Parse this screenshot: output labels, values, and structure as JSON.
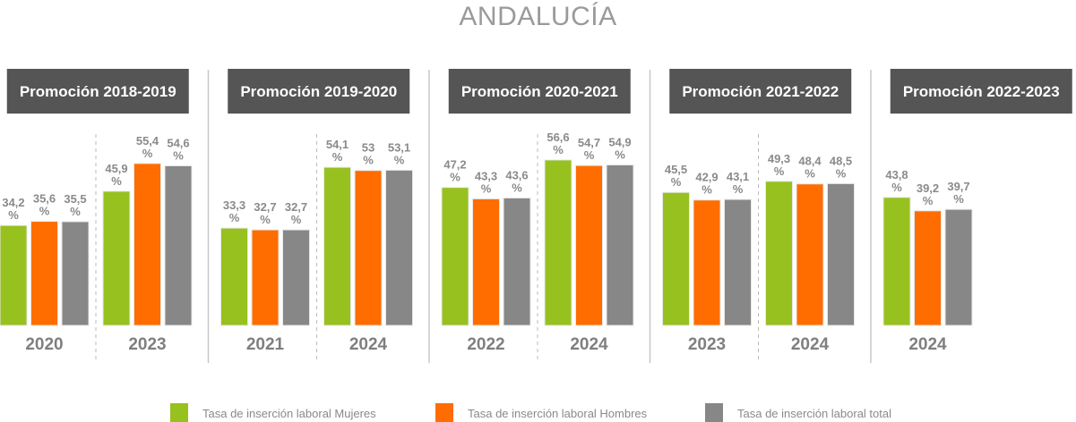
{
  "chart_data": {
    "type": "bar",
    "title": "ANDALUCÍA",
    "xlabel": "",
    "ylabel": "",
    "ylim": [
      0,
      60
    ],
    "grid": false,
    "legend_position": "bottom",
    "unit": "%",
    "colors": {
      "mujeres": "#97c11f",
      "hombres": "#ff6c00",
      "total": "#878787",
      "header": "#555555"
    },
    "legend": [
      {
        "key": "mujeres",
        "label": "Tasa de inserción laboral Mujeres"
      },
      {
        "key": "hombres",
        "label": "Tasa de inserción laboral Hombres"
      },
      {
        "key": "total",
        "label": "Tasa de inserción laboral total"
      }
    ],
    "panels": [
      {
        "title": "Promoción 2018-2019",
        "groups": [
          {
            "year": "2020",
            "mujeres": 34.2,
            "hombres": 35.6,
            "total": 35.5,
            "labels": [
              "34,2",
              "35,6",
              "35,5"
            ]
          },
          {
            "year": "2023",
            "mujeres": 45.9,
            "hombres": 55.4,
            "total": 54.6,
            "labels": [
              "45,9",
              "55,4",
              "54,6"
            ]
          }
        ]
      },
      {
        "title": "Promoción 2019-2020",
        "groups": [
          {
            "year": "2021",
            "mujeres": 33.3,
            "hombres": 32.7,
            "total": 32.7,
            "labels": [
              "33,3",
              "32,7",
              "32,7"
            ]
          },
          {
            "year": "2024",
            "mujeres": 54.1,
            "hombres": 53,
            "total": 53.1,
            "labels": [
              "54,1",
              "53",
              "53,1"
            ]
          }
        ]
      },
      {
        "title": "Promoción 2020-2021",
        "groups": [
          {
            "year": "2022",
            "mujeres": 47.2,
            "hombres": 43.3,
            "total": 43.6,
            "labels": [
              "47,2",
              "43,3",
              "43,6"
            ]
          },
          {
            "year": "2024",
            "mujeres": 56.6,
            "hombres": 54.7,
            "total": 54.9,
            "labels": [
              "56,6",
              "54,7",
              "54,9"
            ]
          }
        ]
      },
      {
        "title": "Promoción 2021-2022",
        "groups": [
          {
            "year": "2023",
            "mujeres": 45.5,
            "hombres": 42.9,
            "total": 43.1,
            "labels": [
              "45,5",
              "42,9",
              "43,1"
            ]
          },
          {
            "year": "2024",
            "mujeres": 49.3,
            "hombres": 48.4,
            "total": 48.5,
            "labels": [
              "49,3",
              "48,4",
              "48,5"
            ]
          }
        ]
      },
      {
        "title": "Promoción 2022-2023",
        "groups": [
          {
            "year": "2024",
            "mujeres": 43.8,
            "hombres": 39.2,
            "total": 39.7,
            "labels": [
              "43,8",
              "39,2",
              "39,7"
            ]
          }
        ]
      }
    ]
  }
}
